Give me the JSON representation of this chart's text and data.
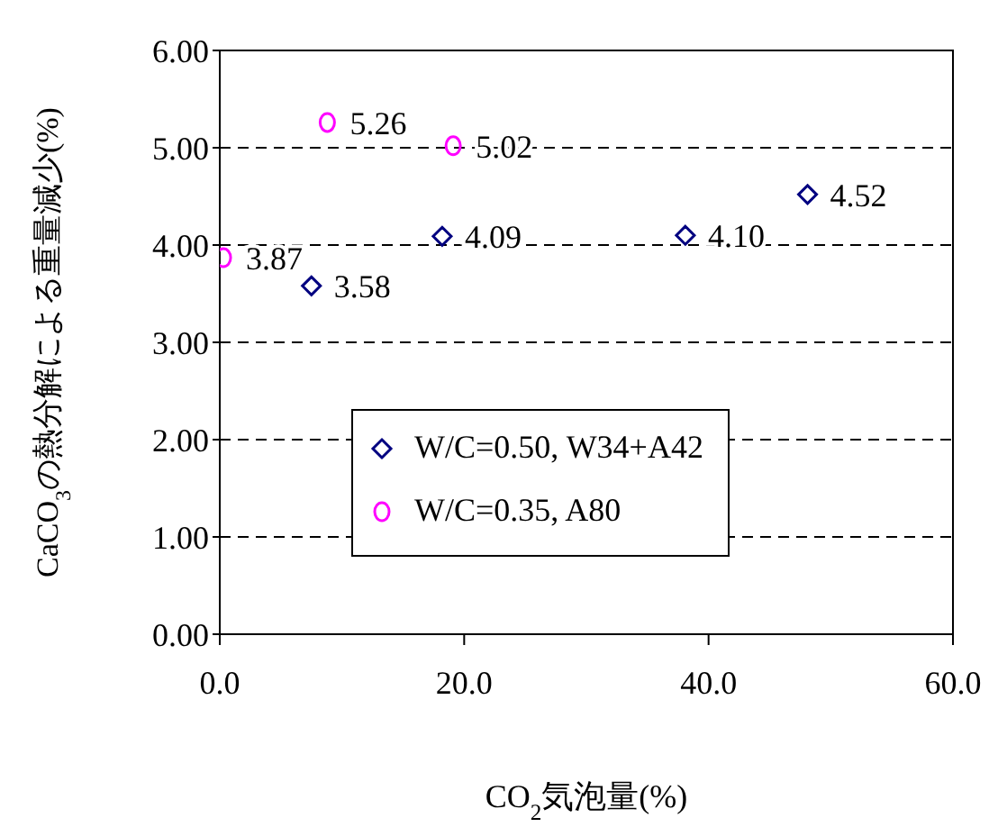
{
  "chart_data": {
    "type": "scatter",
    "xlabel": "CO$_{2}$気泡量(%)",
    "ylabel": "CaCO$_{3}$の熱分解による重量減少(%)",
    "series": [
      {
        "name": "W/C=0.50, W34+A42",
        "color": "#000080",
        "marker": "diamond",
        "x": [
          7.5,
          18.2,
          38.1,
          48.1
        ],
        "values": [
          3.58,
          4.09,
          4.1,
          4.52
        ],
        "value_labels": [
          "3.58",
          "4.09",
          "4.10",
          "4.52"
        ]
      },
      {
        "name": "W/C=0.35, A80",
        "color": "#ff00ff",
        "marker": "circle",
        "x": [
          0.3,
          8.8,
          19.1
        ],
        "values": [
          3.87,
          5.26,
          5.02
        ],
        "value_labels": [
          "3.87",
          "5.26",
          "5.02"
        ]
      }
    ],
    "xlim": [
      0,
      60
    ],
    "xticks": [
      {
        "value": 0,
        "label": "0.0"
      },
      {
        "value": 20,
        "label": "20.0"
      },
      {
        "value": 40,
        "label": "40.0"
      },
      {
        "value": 60,
        "label": "60.0"
      }
    ],
    "ylim": [
      0,
      6
    ],
    "yticks": [
      {
        "value": 0,
        "label": "0.00"
      },
      {
        "value": 1,
        "label": "1.00"
      },
      {
        "value": 2,
        "label": "2.00"
      },
      {
        "value": 3,
        "label": "3.00"
      },
      {
        "value": 4,
        "label": "4.00"
      },
      {
        "value": 5,
        "label": "5.00"
      },
      {
        "value": 6,
        "label": "6.00"
      }
    ],
    "grid": "y",
    "legend": "bottom"
  }
}
